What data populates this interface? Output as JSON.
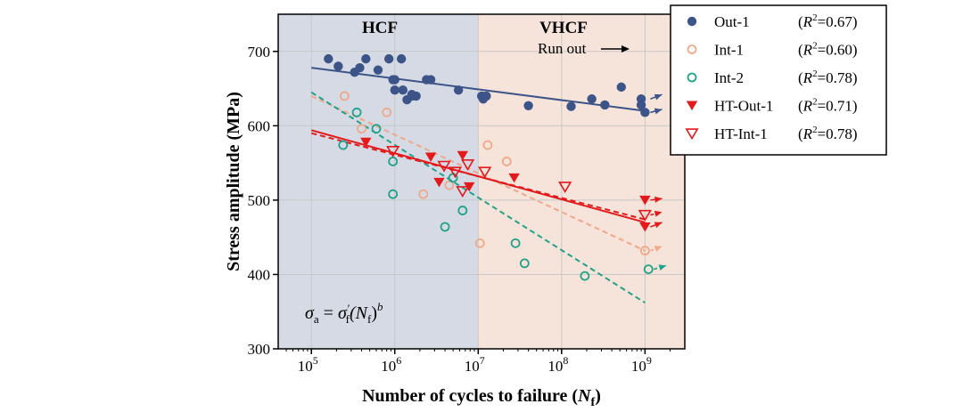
{
  "chart_data": {
    "type": "scatter",
    "xscale": "log",
    "xlim": [
      40000,
      3000000000
    ],
    "ylim": [
      300,
      750
    ],
    "xlabel_main": "Number of cycles to failure (",
    "xlabel_var": "N",
    "xlabel_sub": "f",
    "xlabel_close": ")",
    "ylabel": "Stress amplitude (MPa)",
    "x_ticks": [
      {
        "value": 100000,
        "base": "10",
        "exp": "5"
      },
      {
        "value": 1000000,
        "base": "10",
        "exp": "6"
      },
      {
        "value": 10000000,
        "base": "10",
        "exp": "7"
      },
      {
        "value": 100000000,
        "base": "10",
        "exp": "8"
      },
      {
        "value": 1000000000,
        "base": "10",
        "exp": "9"
      }
    ],
    "y_ticks": [
      300,
      400,
      500,
      600,
      700
    ],
    "grid": true,
    "regions": [
      {
        "label": "HCF",
        "x_from": 40000,
        "x_to": 10000000,
        "color": "#d5dae4"
      },
      {
        "label": "VHCF",
        "x_from": 10000000,
        "x_to": 3000000000,
        "color": "#f6e3da"
      }
    ],
    "run_out_label": "Run out",
    "formula": {
      "lhs": "σ",
      "lhs_sub": "a",
      "eq": " = ",
      "rhs": "σ",
      "rhs_prime": "′",
      "rhs_sub": "f",
      "paren_open": "(N",
      "paren_sub": "f",
      "paren_close": ")",
      "exp": "b"
    },
    "legend_position": "top-right",
    "series": [
      {
        "name": "Out-1",
        "r2": "0.67",
        "marker": "circle-filled",
        "color": "#3c5488",
        "points": [
          [
            160000,
            690
          ],
          [
            210000,
            680
          ],
          [
            330000,
            672
          ],
          [
            380000,
            678
          ],
          [
            450000,
            690
          ],
          [
            630000,
            675
          ],
          [
            850000,
            690
          ],
          [
            950000,
            662
          ],
          [
            1000000,
            648
          ],
          [
            1000000,
            662
          ],
          [
            1200000,
            690
          ],
          [
            1250000,
            648
          ],
          [
            1400000,
            635
          ],
          [
            1600000,
            640
          ],
          [
            1800000,
            640
          ],
          [
            1600000,
            642
          ],
          [
            2400000,
            662
          ],
          [
            2700000,
            662
          ],
          [
            5800000,
            648
          ],
          [
            11000000,
            640
          ],
          [
            11500000,
            636
          ],
          [
            12500000,
            640
          ],
          [
            40000000,
            627
          ],
          [
            130000000,
            626
          ],
          [
            230000000,
            636
          ],
          [
            330000000,
            628
          ],
          [
            520000000,
            652
          ],
          [
            900000000,
            628
          ],
          [
            900000000,
            636
          ],
          [
            1000000000,
            618
          ]
        ],
        "fit": {
          "style": "solid",
          "from": [
            100000,
            678
          ],
          "to": [
            1000000000,
            620
          ]
        },
        "runouts": [
          [
            1000000000,
            636,
            1600000000,
            642
          ],
          [
            1000000000,
            618,
            1600000000,
            622
          ]
        ]
      },
      {
        "name": "Int-1",
        "r2": "0.60",
        "marker": "circle-open",
        "color": "#f0a888",
        "points": [
          [
            250000,
            640
          ],
          [
            400000,
            596
          ],
          [
            800000,
            618
          ],
          [
            2200000,
            508
          ],
          [
            4500000,
            520
          ],
          [
            10500000,
            442
          ],
          [
            13000000,
            574
          ],
          [
            22000000,
            552
          ],
          [
            1000000000,
            432
          ]
        ],
        "fit": {
          "style": "dashed",
          "from": [
            100000,
            640
          ],
          "to": [
            1000000000,
            432
          ]
        },
        "runouts": [
          [
            1000000000,
            432,
            1600000000,
            438
          ]
        ]
      },
      {
        "name": "Int-2",
        "r2": "0.78",
        "marker": "circle-open",
        "color": "#1fa28a",
        "points": [
          [
            240000,
            574
          ],
          [
            350000,
            618
          ],
          [
            600000,
            596
          ],
          [
            950000,
            552
          ],
          [
            950000,
            508
          ],
          [
            4000000,
            464
          ],
          [
            5000000,
            530
          ],
          [
            6500000,
            486
          ],
          [
            28000000,
            442
          ],
          [
            36000000,
            415
          ],
          [
            190000000,
            398
          ],
          [
            1100000000,
            407
          ]
        ],
        "fit": {
          "style": "dashed",
          "from": [
            100000,
            645
          ],
          "to": [
            1000000000,
            362
          ]
        },
        "runouts": [
          [
            1100000000,
            407,
            1800000000,
            412
          ]
        ]
      },
      {
        "name": "HT-Out-1",
        "r2": "0.71",
        "marker": "triangle-down-filled",
        "color": "#e31a1c",
        "points": [
          [
            450000,
            578
          ],
          [
            2700000,
            558
          ],
          [
            3400000,
            524
          ],
          [
            6500000,
            560
          ],
          [
            7800000,
            518
          ],
          [
            27000000,
            530
          ],
          [
            1000000000,
            500
          ],
          [
            1000000000,
            464
          ]
        ],
        "fit": {
          "style": "solid",
          "from": [
            100000,
            594
          ],
          "to": [
            1000000000,
            470
          ]
        },
        "runouts": [
          [
            1000000000,
            500,
            1600000000,
            502
          ],
          [
            1000000000,
            464,
            1600000000,
            470
          ]
        ]
      },
      {
        "name": "HT-Int-1",
        "r2": "0.78",
        "marker": "triangle-down-open",
        "color": "#e31a1c",
        "points": [
          [
            950000,
            566
          ],
          [
            3900000,
            546
          ],
          [
            5300000,
            538
          ],
          [
            6500000,
            512
          ],
          [
            7500000,
            548
          ],
          [
            12000000,
            538
          ],
          [
            110000000,
            518
          ],
          [
            1000000000,
            480
          ]
        ],
        "fit": {
          "style": "dashed",
          "from": [
            100000,
            590
          ],
          "to": [
            1000000000,
            474
          ]
        },
        "runouts": [
          [
            1000000000,
            480,
            1600000000,
            484
          ]
        ]
      }
    ]
  }
}
